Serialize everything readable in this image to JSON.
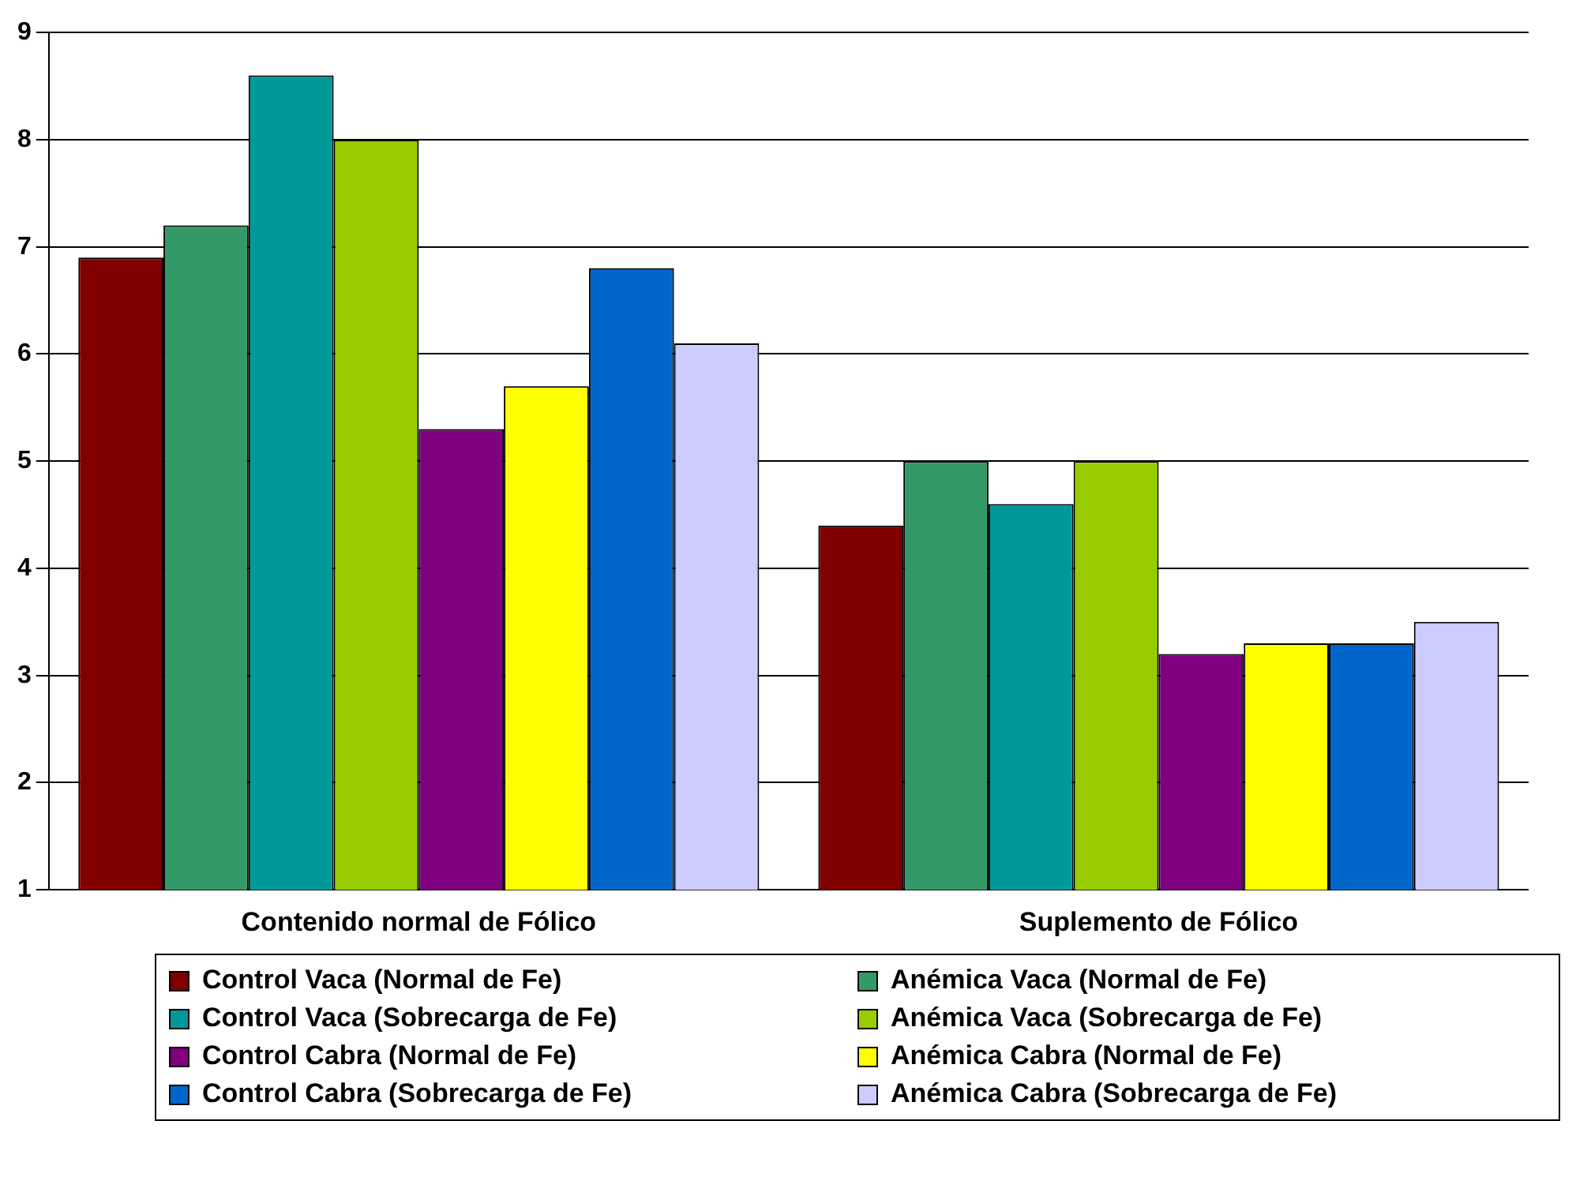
{
  "chart_data": {
    "type": "bar",
    "categories": [
      "Contenido normal de Fólico",
      "Suplemento de Fólico"
    ],
    "series": [
      {
        "name": "Control Vaca (Normal de Fe)",
        "color": "#800000",
        "values": [
          6.9,
          4.4
        ]
      },
      {
        "name": "Anémica Vaca (Normal de Fe)",
        "color": "#339966",
        "values": [
          7.2,
          5.0
        ]
      },
      {
        "name": "Control Vaca (Sobrecarga de Fe)",
        "color": "#009999",
        "values": [
          8.6,
          4.6
        ]
      },
      {
        "name": "Anémica Vaca (Sobrecarga de Fe)",
        "color": "#99cc00",
        "values": [
          8.0,
          5.0
        ]
      },
      {
        "name": "Control Cabra (Normal de Fe)",
        "color": "#800080",
        "values": [
          5.3,
          3.2
        ]
      },
      {
        "name": "Anémica Cabra (Normal de Fe)",
        "color": "#ffff00",
        "values": [
          5.7,
          3.3
        ]
      },
      {
        "name": "Control Cabra (Sobrecarga de Fe)",
        "color": "#0066cc",
        "values": [
          6.8,
          3.3
        ]
      },
      {
        "name": "Anémica Cabra (Sobrecarga de Fe)",
        "color": "#ccccff",
        "values": [
          6.1,
          3.5
        ]
      }
    ],
    "ylim": [
      1,
      9
    ],
    "yticks": [
      1,
      2,
      3,
      4,
      5,
      6,
      7,
      8,
      9
    ],
    "grid": "y",
    "legend": "bottom"
  }
}
